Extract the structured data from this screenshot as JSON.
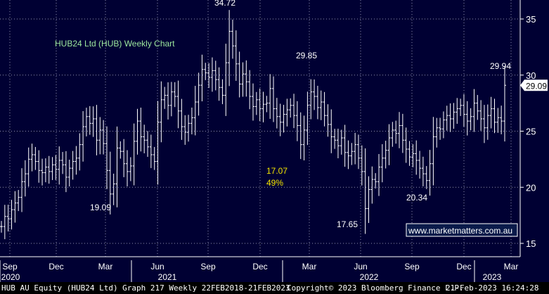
{
  "chart_data": {
    "type": "ohlc",
    "title": "HUB24 Ltd (HUB) Weekly Chart",
    "y_ticks": [
      15,
      20,
      25,
      30,
      35
    ],
    "ylim": [
      13.5,
      36
    ],
    "x_month_labels": [
      "Sep",
      "Dec",
      "Mar",
      "Jun",
      "Sep",
      "Dec",
      "Mar",
      "Jun",
      "Sep",
      "Dec",
      "Mar"
    ],
    "x_year_labels": [
      "2020",
      "2021",
      "2022",
      "2023"
    ],
    "last_price": "29.09",
    "watermark": "www.marketmatters.com.au",
    "annotations": [
      {
        "text": "34.72"
      },
      {
        "text": "29.85"
      },
      {
        "text": "29.94"
      },
      {
        "text": "19.09"
      },
      {
        "text": "17.65"
      },
      {
        "text": "20.34"
      },
      {
        "text": "17.07"
      },
      {
        "text": "49%"
      }
    ],
    "close_series": [
      16.5,
      17.4,
      17.2,
      18.0,
      18.6,
      19.1,
      20.5,
      21.2,
      22.5,
      22.9,
      22.3,
      21.5,
      21.3,
      21.8,
      21.4,
      22.0,
      21.6,
      22.4,
      22.0,
      20.9,
      21.7,
      22.3,
      22.6,
      23.8,
      25.4,
      26.3,
      25.7,
      26.1,
      24.2,
      25.1,
      23.9,
      21.5,
      19.4,
      20.3,
      23.5,
      23.2,
      22.1,
      21.4,
      21.9,
      24.1,
      25.9,
      24.5,
      24.2,
      23.6,
      22.9,
      22.3,
      25.8,
      27.8,
      28.2,
      27.3,
      28.5,
      28.1,
      26.8,
      25.4,
      24.9,
      25.7,
      26.2,
      27.6,
      29.1,
      30.5,
      30.2,
      29.8,
      30.4,
      29.6,
      28.9,
      28.2,
      31.1,
      33.9,
      32.6,
      31.0,
      29.2,
      30.1,
      29.4,
      28.1,
      27.2,
      27.8,
      27.0,
      27.4,
      27.5,
      28.8,
      27.0,
      26.3,
      25.8,
      26.5,
      26.9,
      27.3,
      26.4,
      25.5,
      23.8,
      25.1,
      27.3,
      28.5,
      28.1,
      27.1,
      27.6,
      26.4,
      25.6,
      24.5,
      24.2,
      23.7,
      24.4,
      23.1,
      22.8,
      23.2,
      23.8,
      22.6,
      21.4,
      18.1,
      19.8,
      20.7,
      20.5,
      21.8,
      22.6,
      23.3,
      24.4,
      25.1,
      24.8,
      25.5,
      24.2,
      23.4,
      22.7,
      23.0,
      22.4,
      21.7,
      21.2,
      20.6,
      22.1,
      24.5,
      25.3,
      25.2,
      26.0,
      26.4,
      26.1,
      26.7,
      27.0,
      27.3,
      26.5,
      25.9,
      26.3,
      27.5,
      26.8,
      26.1,
      25.3,
      26.4,
      27.0,
      25.8,
      26.2,
      25.9,
      29.09
    ],
    "price_axis_position": "right"
  },
  "footer": {
    "left": "HUB AU Equity (HUB24 Ltd) Graph 217  Weekly 22FEB2018-21FEB2023",
    "center": "Copyright© 2023 Bloomberg Finance L.P.",
    "right": "21-Feb-2023 16:24:28"
  },
  "colors": {
    "background": "#000033",
    "bars": "#ffffff",
    "grid": "#9090b0",
    "title": "#9de89d",
    "highlight": "#f2e400",
    "watermark": "#ffffff"
  }
}
